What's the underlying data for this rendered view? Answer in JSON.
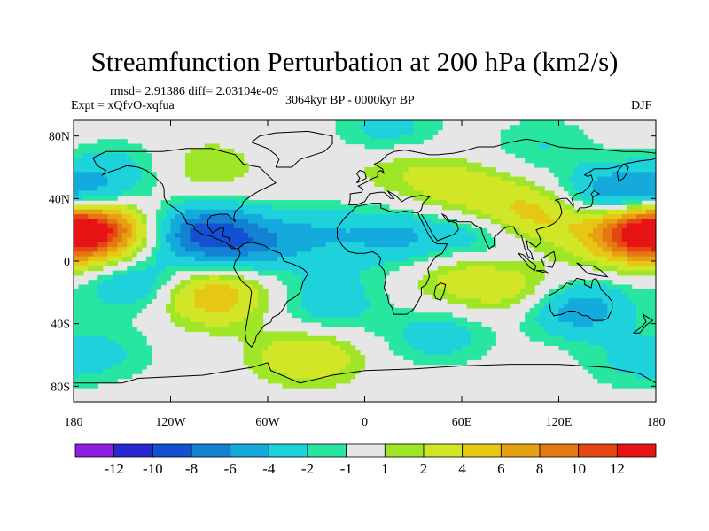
{
  "header": {
    "title": "Streamfunction Perturbation at 200 hPa (km2/s)",
    "stats": "rmsd= 2.91386 diff= 2.03104e-09",
    "experiment": "Expt = xQfvO-xqfua",
    "period": "3064kyr BP - 0000kyr BP",
    "season": "DJF"
  },
  "chart_data": {
    "type": "heatmap",
    "title": "Streamfunction Perturbation at 200 hPa (km2/s)",
    "projection": "cylindrical-equidistant",
    "xlim": [
      -180,
      180
    ],
    "ylim": [
      -90,
      90
    ],
    "x_ticks": [
      {
        "value": -180,
        "label": "180"
      },
      {
        "value": -120,
        "label": "120W"
      },
      {
        "value": -60,
        "label": "60W"
      },
      {
        "value": 0,
        "label": "0"
      },
      {
        "value": 60,
        "label": "60E"
      },
      {
        "value": 120,
        "label": "120E"
      },
      {
        "value": 180,
        "label": "180"
      }
    ],
    "y_ticks": [
      {
        "value": 80,
        "label": "80N"
      },
      {
        "value": 40,
        "label": "40N"
      },
      {
        "value": 0,
        "label": "0"
      },
      {
        "value": -40,
        "label": "40S"
      },
      {
        "value": -80,
        "label": "80S"
      }
    ],
    "colorbar": {
      "levels": [
        "-12",
        "-10",
        "-8",
        "-6",
        "-4",
        "-2",
        "-1",
        "1",
        "2",
        "4",
        "6",
        "8",
        "10",
        "12"
      ],
      "colors": [
        "#8c1ee6",
        "#2828d2",
        "#1450d2",
        "#1482d2",
        "#14aadc",
        "#1ed2dc",
        "#28e6a0",
        "#e6e6e6",
        "#a0e628",
        "#d2e628",
        "#e6c814",
        "#e6a014",
        "#e67814",
        "#e64614",
        "#e61414"
      ]
    },
    "anomalies": [
      {
        "lon": -168,
        "lat": 20,
        "peak": 11
      },
      {
        "lon": 168,
        "lat": 18,
        "peak": 10
      },
      {
        "lon": 150,
        "lat": 42,
        "peak": -5
      },
      {
        "lon": -175,
        "lat": 42,
        "peak": -5
      },
      {
        "lon": -100,
        "lat": 18,
        "peak": -8
      },
      {
        "lon": -70,
        "lat": 10,
        "peak": -4
      },
      {
        "lon": -30,
        "lat": 18,
        "peak": -3
      },
      {
        "lon": 20,
        "lat": 15,
        "peak": -4
      },
      {
        "lon": 70,
        "lat": 15,
        "peak": -3
      },
      {
        "lon": -95,
        "lat": -22,
        "peak": 6
      },
      {
        "lon": -140,
        "lat": -15,
        "peak": -4
      },
      {
        "lon": -160,
        "lat": -58,
        "peak": -2
      },
      {
        "lon": -20,
        "lat": -18,
        "peak": -2
      },
      {
        "lon": -25,
        "lat": -35,
        "peak": -2
      },
      {
        "lon": -35,
        "lat": -60,
        "peak": 4
      },
      {
        "lon": 45,
        "lat": -48,
        "peak": -3
      },
      {
        "lon": 60,
        "lat": -10,
        "peak": 3
      },
      {
        "lon": 130,
        "lat": -30,
        "peak": -6
      },
      {
        "lon": 100,
        "lat": -20,
        "peak": 3
      },
      {
        "lon": 105,
        "lat": 30,
        "peak": 5
      },
      {
        "lon": 60,
        "lat": 45,
        "peak": 3
      },
      {
        "lon": 20,
        "lat": 62,
        "peak": 2
      },
      {
        "lon": 15,
        "lat": 82,
        "peak": -3
      },
      {
        "lon": 110,
        "lat": 75,
        "peak": -2
      },
      {
        "lon": 165,
        "lat": -65,
        "peak": -2
      },
      {
        "lon": -100,
        "lat": 60,
        "peak": 2
      },
      {
        "lon": -148,
        "lat": 62,
        "peak": -2
      }
    ]
  }
}
